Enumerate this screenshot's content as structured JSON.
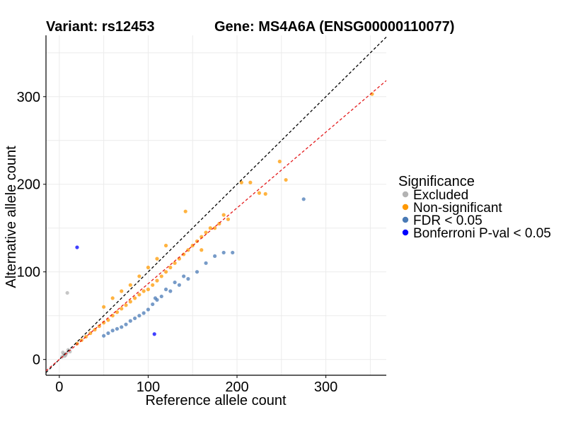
{
  "header": {
    "variant_label": "Variant: rs12453",
    "gene_label": "Gene: MS4A6A (ENSG00000110077)"
  },
  "chart_data": {
    "type": "scatter",
    "xlabel": "Reference allele count",
    "ylabel": "Alternative allele count",
    "xlim": [
      -15,
      368
    ],
    "ylim": [
      -18,
      370
    ],
    "x_ticks": [
      0,
      100,
      200,
      300
    ],
    "y_ticks": [
      0,
      100,
      200,
      300
    ],
    "grid": true,
    "legend": {
      "title": "Significance",
      "position": "right",
      "entries": [
        {
          "label": "Excluded",
          "color": "#b3b3b3"
        },
        {
          "label": "Non-significant",
          "color": "#ff9900"
        },
        {
          "label": "FDR < 0.05",
          "color": "#4a7ab5"
        },
        {
          "label": "Bonferroni P-val < 0.05",
          "color": "#0000ff"
        }
      ]
    },
    "reference_lines": [
      {
        "name": "identity",
        "slope": 1.0,
        "intercept": 0,
        "color": "#000000",
        "dash": true
      },
      {
        "name": "fit",
        "slope": 0.865,
        "intercept": 0,
        "color": "#e41a1c",
        "dash": true
      }
    ],
    "series": [
      {
        "name": "Excluded",
        "color": "#b3b3b3",
        "points": [
          [
            3,
            3
          ],
          [
            5,
            6
          ],
          [
            6,
            4
          ],
          [
            8,
            7
          ],
          [
            10,
            11
          ],
          [
            9,
            76
          ],
          [
            12,
            9
          ],
          [
            4,
            8
          ],
          [
            7,
            5
          ]
        ]
      },
      {
        "name": "Non-significant",
        "color": "#ff9900",
        "points": [
          [
            352,
            303
          ],
          [
            248,
            226
          ],
          [
            255,
            205
          ],
          [
            232,
            189
          ],
          [
            225,
            190
          ],
          [
            215,
            202
          ],
          [
            205,
            202
          ],
          [
            190,
            160
          ],
          [
            180,
            155
          ],
          [
            170,
            150
          ],
          [
            165,
            145
          ],
          [
            160,
            140
          ],
          [
            155,
            135
          ],
          [
            150,
            130
          ],
          [
            145,
            125
          ],
          [
            140,
            120
          ],
          [
            135,
            115
          ],
          [
            130,
            110
          ],
          [
            125,
            105
          ],
          [
            120,
            100
          ],
          [
            115,
            95
          ],
          [
            110,
            90
          ],
          [
            105,
            85
          ],
          [
            100,
            80
          ],
          [
            95,
            78
          ],
          [
            90,
            74
          ],
          [
            85,
            70
          ],
          [
            80,
            66
          ],
          [
            75,
            62
          ],
          [
            70,
            58
          ],
          [
            65,
            54
          ],
          [
            60,
            50
          ],
          [
            55,
            45
          ],
          [
            50,
            42
          ],
          [
            45,
            38
          ],
          [
            40,
            34
          ],
          [
            35,
            30
          ],
          [
            30,
            26
          ],
          [
            25,
            22
          ],
          [
            20,
            18
          ],
          [
            142,
            169
          ],
          [
            175,
            150
          ],
          [
            160,
            125
          ],
          [
            185,
            165
          ],
          [
            120,
            130
          ],
          [
            110,
            115
          ],
          [
            100,
            105
          ],
          [
            90,
            95
          ],
          [
            80,
            85
          ],
          [
            70,
            78
          ],
          [
            60,
            70
          ],
          [
            50,
            60
          ]
        ]
      },
      {
        "name": "FDR < 0.05",
        "color": "#4a7ab5",
        "points": [
          [
            275,
            183
          ],
          [
            195,
            122
          ],
          [
            185,
            122
          ],
          [
            175,
            118
          ],
          [
            165,
            110
          ],
          [
            155,
            100
          ],
          [
            145,
            92
          ],
          [
            135,
            85
          ],
          [
            125,
            78
          ],
          [
            115,
            72
          ],
          [
            110,
            68
          ],
          [
            105,
            63
          ],
          [
            100,
            57
          ],
          [
            95,
            53
          ],
          [
            90,
            50
          ],
          [
            85,
            47
          ],
          [
            80,
            44
          ],
          [
            75,
            40
          ],
          [
            70,
            37
          ],
          [
            65,
            35
          ],
          [
            60,
            33
          ],
          [
            55,
            30
          ],
          [
            50,
            27
          ],
          [
            140,
            95
          ],
          [
            130,
            88
          ],
          [
            120,
            80
          ],
          [
            108,
            70
          ]
        ]
      },
      {
        "name": "Bonferroni P-val < 0.05",
        "color": "#0000ff",
        "points": [
          [
            20,
            128
          ],
          [
            107,
            29
          ]
        ]
      }
    ]
  }
}
